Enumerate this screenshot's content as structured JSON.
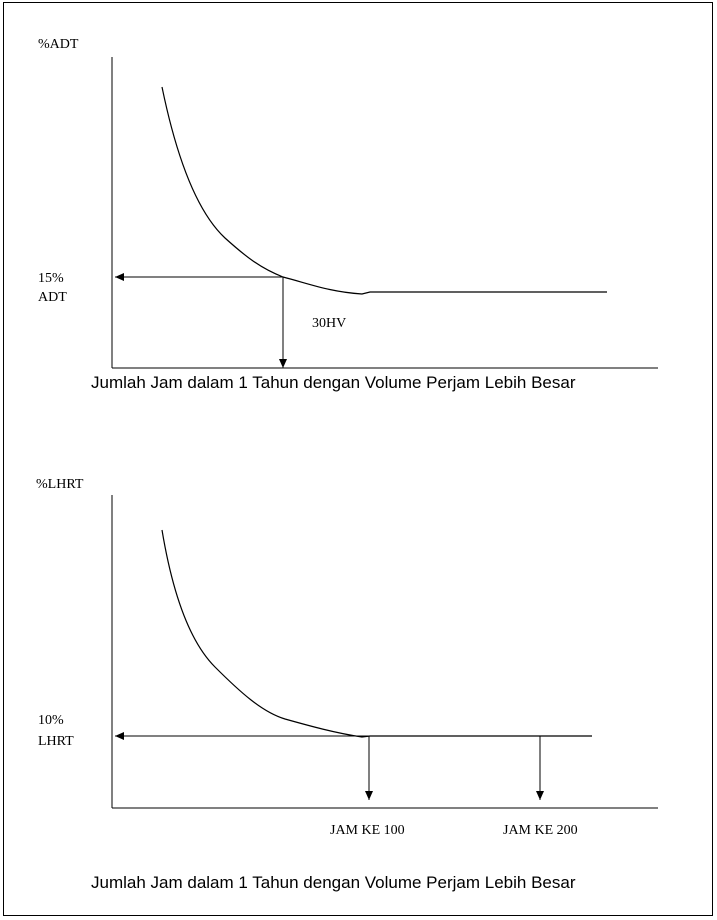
{
  "figures": [
    {
      "y_axis_label": "%ADT",
      "ref_level_line1": "15%",
      "ref_level_line2": "ADT",
      "marker_label": "30HV",
      "caption": "Jumlah Jam dalam 1 Tahun dengan Volume Perjam Lebih Besar"
    },
    {
      "y_axis_label": "%LHRT",
      "ref_level_line1": "10%",
      "ref_level_line2": "LHRT",
      "marker_labels": [
        "JAM KE 100",
        "JAM KE 200"
      ],
      "caption": "Jumlah Jam dalam 1 Tahun dengan Volume Perjam Lebih Besar"
    }
  ]
}
